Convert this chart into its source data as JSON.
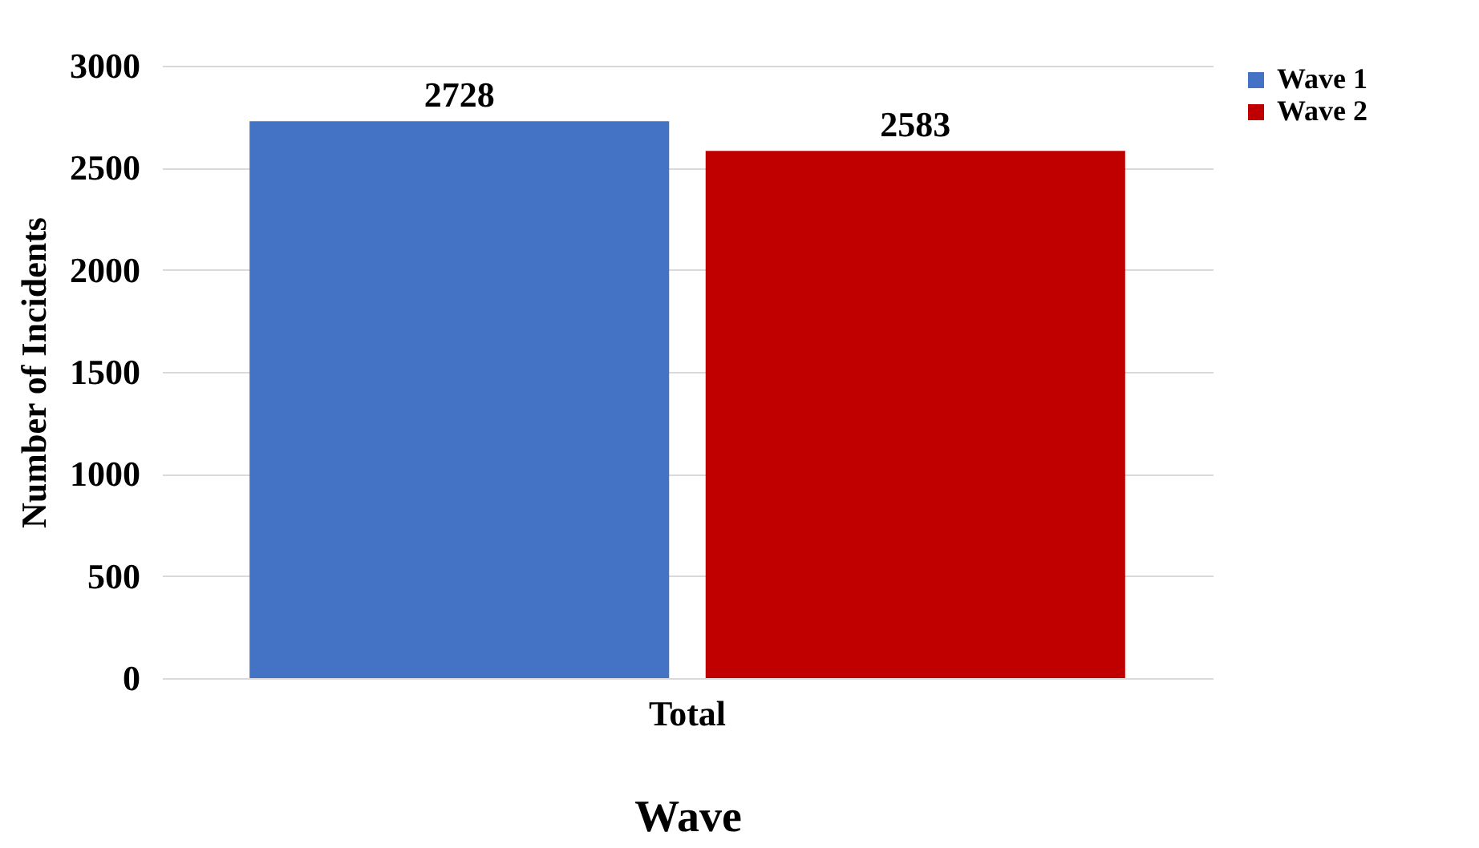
{
  "chart_data": {
    "type": "bar",
    "categories": [
      "Total"
    ],
    "xlabel": "Wave",
    "ylabel": "Number of Incidents",
    "series": [
      {
        "name": "Wave 1",
        "color": "#4472c4",
        "values": [
          2728
        ]
      },
      {
        "name": "Wave 2",
        "color": "#c00000",
        "values": [
          2583
        ]
      }
    ],
    "ylim": [
      0,
      3000
    ],
    "yticks": [
      0,
      500,
      1000,
      1500,
      2000,
      2500,
      3000
    ],
    "grid": "y",
    "legend": "right",
    "data_labels": true
  }
}
